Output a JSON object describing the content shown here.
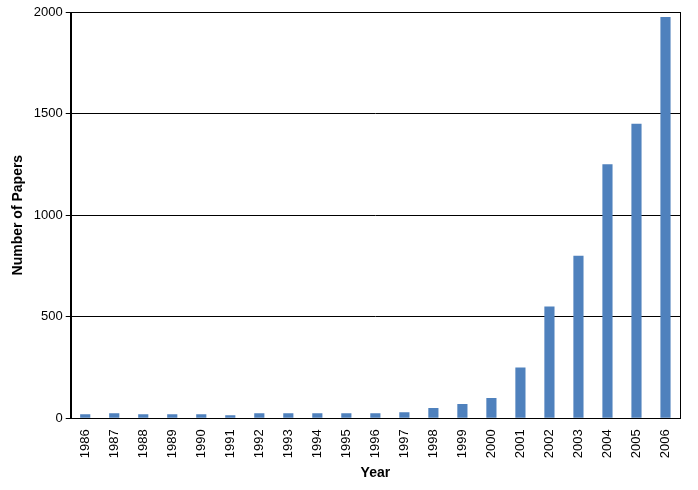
{
  "chart_data": {
    "type": "bar",
    "x_label": "Year",
    "y_label": "Number of Papers",
    "categories": [
      "1986",
      "1987",
      "1988",
      "1989",
      "1990",
      "1991",
      "1992",
      "1993",
      "1994",
      "1995",
      "1996",
      "1997",
      "1998",
      "1999",
      "2000",
      "2001",
      "2002",
      "2003",
      "2004",
      "2005",
      "2006"
    ],
    "values": [
      20,
      25,
      20,
      20,
      20,
      15,
      25,
      25,
      25,
      25,
      25,
      30,
      50,
      70,
      100,
      250,
      550,
      800,
      1250,
      1450,
      1975
    ],
    "color": "#4f81bd",
    "ylim": [
      0,
      2000
    ],
    "yticks": [
      0,
      500,
      1000,
      1500,
      2000
    ],
    "grid": true
  }
}
